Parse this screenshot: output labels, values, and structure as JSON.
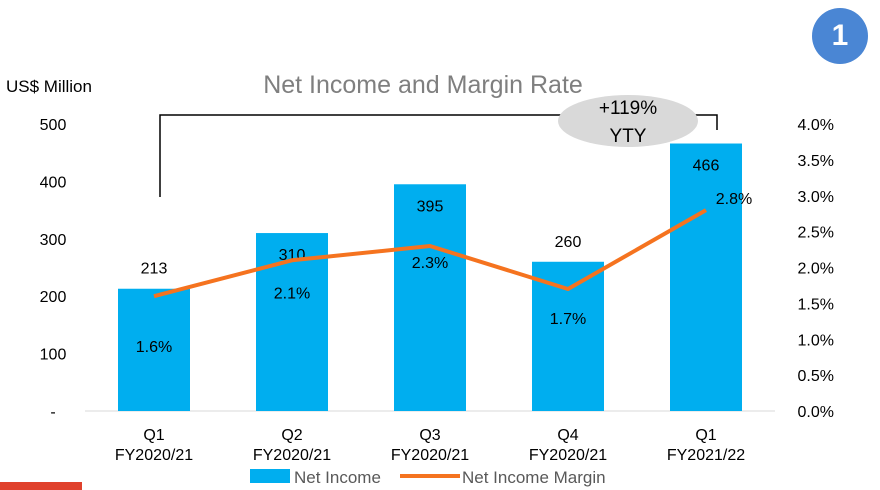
{
  "page_badge": "1",
  "chart_data": {
    "type": "bar+line",
    "title": "Net Income and Margin Rate",
    "y_left_label": "US$ Million",
    "y_left_ticks": [
      "-",
      "100",
      "200",
      "300",
      "400",
      "500"
    ],
    "y_left_range": [
      0,
      500
    ],
    "y_right_ticks": [
      "0.0%",
      "0.5%",
      "1.0%",
      "1.5%",
      "2.0%",
      "2.5%",
      "3.0%",
      "3.5%",
      "4.0%"
    ],
    "y_right_range": [
      0,
      4.0
    ],
    "categories": [
      {
        "quarter": "Q1",
        "fy": "FY2020/21"
      },
      {
        "quarter": "Q2",
        "fy": "FY2020/21"
      },
      {
        "quarter": "Q3",
        "fy": "FY2020/21"
      },
      {
        "quarter": "Q4",
        "fy": "FY2020/21"
      },
      {
        "quarter": "Q1",
        "fy": "FY2021/22"
      }
    ],
    "series": [
      {
        "name": "Net Income",
        "kind": "bar",
        "axis": "left",
        "color": "#00aeef",
        "values": [
          213,
          310,
          395,
          260,
          466
        ],
        "labels": [
          "213",
          "310",
          "395",
          "260",
          "466"
        ]
      },
      {
        "name": "Net Income Margin",
        "kind": "line",
        "axis": "right",
        "color": "#f5731f",
        "values": [
          1.6,
          2.1,
          2.3,
          1.7,
          2.8
        ],
        "labels": [
          "1.6%",
          "2.1%",
          "2.3%",
          "1.7%",
          "2.8%"
        ]
      }
    ],
    "annotation": {
      "line1": "+119%",
      "line2": "YTY"
    },
    "legend": {
      "position": "bottom"
    }
  }
}
